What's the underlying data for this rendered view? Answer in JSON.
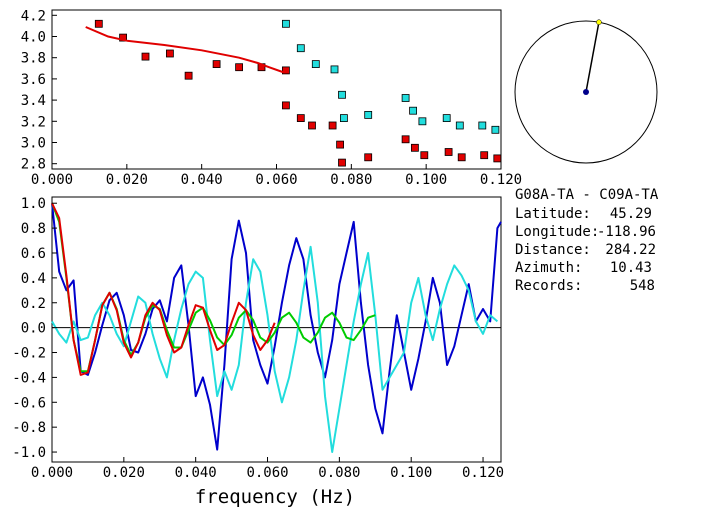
{
  "station_info": {
    "pair": "G08A-TA - C09A-TA",
    "latitude_label": "Latitude:",
    "latitude_value": "45.29",
    "longitude_label": "Longitude:",
    "longitude_value": "-118.96",
    "distance_label": "Distance:",
    "distance_value": "284.22",
    "azimuth_label": "Azimuth:",
    "azimuth_value": "10.43",
    "records_label": "Records:",
    "records_value": "548"
  },
  "azimuth_dial": {
    "azimuth_deg": 10.43,
    "circle_color": "#000000",
    "needle_color": "#000000",
    "center_color": "#00008b",
    "tip_color": "#ffff00"
  },
  "colors": {
    "red": "#e00000",
    "blue": "#0000cc",
    "cyan": "#22dddd",
    "green": "#00cc00",
    "axis": "#000000"
  },
  "chart_data": [
    {
      "type": "scatter",
      "title": "",
      "xlabel": "",
      "ylabel": "",
      "xlim": [
        0.0,
        0.12
      ],
      "ylim": [
        2.75,
        4.25
      ],
      "xticks": [
        "0.000",
        "0.020",
        "0.040",
        "0.060",
        "0.080",
        "0.100",
        "0.120"
      ],
      "yticks": [
        "4.2",
        "4.0",
        "3.8",
        "3.6",
        "3.4",
        "3.2",
        "3.0",
        "2.8"
      ],
      "series": [
        {
          "marker": "square",
          "color": "#e00000",
          "x": [
            0.0125,
            0.019,
            0.025,
            0.0315,
            0.0365,
            0.044,
            0.05,
            0.056,
            0.0625,
            0.0625,
            0.0665,
            0.0695,
            0.075,
            0.077,
            0.0775,
            0.0845,
            0.0945,
            0.097,
            0.0995,
            0.106,
            0.1095,
            0.1155,
            0.119
          ],
          "y": [
            4.12,
            3.99,
            3.81,
            3.84,
            3.63,
            3.74,
            3.71,
            3.71,
            3.68,
            3.35,
            3.23,
            3.16,
            3.16,
            2.98,
            2.81,
            2.86,
            3.03,
            2.95,
            2.88,
            2.91,
            2.86,
            2.88,
            2.85
          ]
        },
        {
          "marker": "square",
          "color": "#22dddd",
          "x": [
            0.0625,
            0.0665,
            0.0705,
            0.0755,
            0.0775,
            0.078,
            0.0845,
            0.0945,
            0.0965,
            0.099,
            0.1055,
            0.109,
            0.115,
            0.1185
          ],
          "y": [
            4.12,
            3.89,
            3.74,
            3.69,
            3.45,
            3.23,
            3.26,
            3.42,
            3.3,
            3.2,
            3.23,
            3.16,
            3.16,
            3.12
          ]
        },
        {
          "type": "line",
          "color": "#e00000",
          "x": [
            0.009,
            0.015,
            0.02,
            0.03,
            0.04,
            0.05,
            0.055,
            0.058,
            0.062
          ],
          "y": [
            4.09,
            4.0,
            3.96,
            3.92,
            3.87,
            3.8,
            3.75,
            3.71,
            3.66
          ]
        }
      ]
    },
    {
      "type": "line",
      "title": "",
      "xlabel": "frequency (Hz)",
      "ylabel": "",
      "xlim": [
        0.0,
        0.125
      ],
      "ylim": [
        -1.08,
        1.05
      ],
      "xticks": [
        "0.000",
        "0.020",
        "0.040",
        "0.060",
        "0.080",
        "0.100",
        "0.120"
      ],
      "yticks": [
        "1.0",
        "0.8",
        "0.6",
        "0.4",
        "0.2",
        "0.0",
        "-0.2",
        "-0.4",
        "-0.6",
        "-0.8",
        "-1.0"
      ],
      "series": [
        {
          "color": "#0000cc",
          "x": [
            0.0,
            0.002,
            0.004,
            0.006,
            0.008,
            0.01,
            0.012,
            0.014,
            0.016,
            0.018,
            0.02,
            0.022,
            0.024,
            0.026,
            0.028,
            0.03,
            0.032,
            0.034,
            0.036,
            0.038,
            0.04,
            0.042,
            0.044,
            0.046,
            0.048,
            0.05,
            0.052,
            0.054,
            0.056,
            0.058,
            0.06,
            0.062,
            0.064,
            0.066,
            0.068,
            0.07,
            0.072,
            0.074,
            0.076,
            0.078,
            0.08,
            0.082,
            0.084,
            0.086,
            0.088,
            0.09,
            0.092,
            0.094,
            0.096,
            0.098,
            0.1,
            0.102,
            0.104,
            0.106,
            0.108,
            0.11,
            0.112,
            0.114,
            0.116,
            0.118,
            0.12,
            0.122,
            0.124,
            0.125
          ],
          "y": [
            1.0,
            0.45,
            0.3,
            0.38,
            -0.35,
            -0.38,
            -0.2,
            0.02,
            0.22,
            0.28,
            0.1,
            -0.18,
            -0.2,
            -0.05,
            0.15,
            0.22,
            0.05,
            0.4,
            0.5,
            0.02,
            -0.55,
            -0.4,
            -0.62,
            -0.98,
            -0.3,
            0.55,
            0.86,
            0.6,
            -0.1,
            -0.3,
            -0.45,
            -0.15,
            0.2,
            0.5,
            0.72,
            0.55,
            0.1,
            -0.2,
            -0.4,
            -0.1,
            0.35,
            0.6,
            0.85,
            0.2,
            -0.3,
            -0.65,
            -0.85,
            -0.35,
            0.1,
            -0.2,
            -0.5,
            -0.25,
            0.05,
            0.4,
            0.2,
            -0.3,
            -0.15,
            0.1,
            0.35,
            0.05,
            0.15,
            0.05,
            0.8,
            0.85
          ]
        },
        {
          "color": "#22dddd",
          "x": [
            0.0,
            0.002,
            0.004,
            0.006,
            0.008,
            0.01,
            0.012,
            0.014,
            0.016,
            0.018,
            0.02,
            0.022,
            0.024,
            0.026,
            0.028,
            0.03,
            0.032,
            0.034,
            0.036,
            0.038,
            0.04,
            0.042,
            0.044,
            0.046,
            0.048,
            0.05,
            0.052,
            0.054,
            0.056,
            0.058,
            0.06,
            0.062,
            0.064,
            0.066,
            0.068,
            0.07,
            0.072,
            0.074,
            0.076,
            0.078,
            0.08,
            0.082,
            0.084,
            0.086,
            0.088,
            0.09,
            0.092,
            0.094,
            0.096,
            0.098,
            0.1,
            0.102,
            0.104,
            0.106,
            0.108,
            0.11,
            0.112,
            0.114,
            0.116,
            0.118,
            0.12,
            0.122,
            0.124
          ],
          "y": [
            0.05,
            -0.05,
            -0.12,
            0.05,
            -0.1,
            -0.08,
            0.1,
            0.2,
            0.1,
            -0.05,
            -0.15,
            0.05,
            0.25,
            0.2,
            -0.05,
            -0.25,
            -0.4,
            -0.1,
            0.15,
            0.35,
            0.45,
            0.4,
            -0.1,
            -0.55,
            -0.35,
            -0.5,
            -0.3,
            0.2,
            0.55,
            0.45,
            0.1,
            -0.35,
            -0.6,
            -0.4,
            -0.1,
            0.3,
            0.65,
            0.2,
            -0.55,
            -1.0,
            -0.65,
            -0.3,
            0.05,
            0.35,
            0.6,
            0.1,
            -0.5,
            -0.4,
            -0.3,
            -0.2,
            0.2,
            0.4,
            0.1,
            -0.1,
            0.15,
            0.35,
            0.5,
            0.42,
            0.3,
            0.05,
            -0.05,
            0.1,
            0.05
          ]
        },
        {
          "color": "#00cc00",
          "x": [
            0.0,
            0.002,
            0.004,
            0.006,
            0.008,
            0.01,
            0.012,
            0.014,
            0.016,
            0.018,
            0.02,
            0.022,
            0.024,
            0.026,
            0.028,
            0.03,
            0.032,
            0.034,
            0.036,
            0.038,
            0.04,
            0.042,
            0.044,
            0.046,
            0.048,
            0.05,
            0.052,
            0.054,
            0.056,
            0.058,
            0.06,
            0.062,
            0.064,
            0.066,
            0.068,
            0.07,
            0.072,
            0.074,
            0.076,
            0.078,
            0.08,
            0.082,
            0.084,
            0.086,
            0.088,
            0.09
          ],
          "y": [
            1.0,
            0.85,
            0.4,
            -0.1,
            -0.35,
            -0.35,
            -0.1,
            0.18,
            0.28,
            0.15,
            -0.1,
            -0.22,
            -0.12,
            0.08,
            0.18,
            0.15,
            -0.02,
            -0.16,
            -0.16,
            -0.02,
            0.12,
            0.16,
            0.06,
            -0.08,
            -0.14,
            -0.06,
            0.08,
            0.14,
            0.06,
            -0.08,
            -0.12,
            -0.04,
            0.08,
            0.12,
            0.04,
            -0.08,
            -0.12,
            -0.04,
            0.08,
            0.12,
            0.04,
            -0.08,
            -0.1,
            -0.02,
            0.08,
            0.1
          ]
        },
        {
          "color": "#e00000",
          "x": [
            0.0,
            0.002,
            0.004,
            0.006,
            0.008,
            0.01,
            0.012,
            0.014,
            0.016,
            0.018,
            0.02,
            0.022,
            0.024,
            0.026,
            0.028,
            0.03,
            0.032,
            0.034,
            0.036,
            0.038,
            0.04,
            0.042,
            0.044,
            0.046,
            0.048,
            0.05,
            0.052,
            0.054,
            0.056,
            0.058,
            0.06,
            0.062
          ],
          "y": [
            1.0,
            0.88,
            0.42,
            -0.1,
            -0.38,
            -0.36,
            -0.1,
            0.18,
            0.28,
            0.14,
            -0.12,
            -0.24,
            -0.12,
            0.1,
            0.2,
            0.14,
            -0.06,
            -0.2,
            -0.16,
            0.02,
            0.18,
            0.16,
            -0.02,
            -0.18,
            -0.14,
            0.04,
            0.2,
            0.14,
            -0.06,
            -0.18,
            -0.1,
            0.04
          ]
        }
      ]
    }
  ]
}
